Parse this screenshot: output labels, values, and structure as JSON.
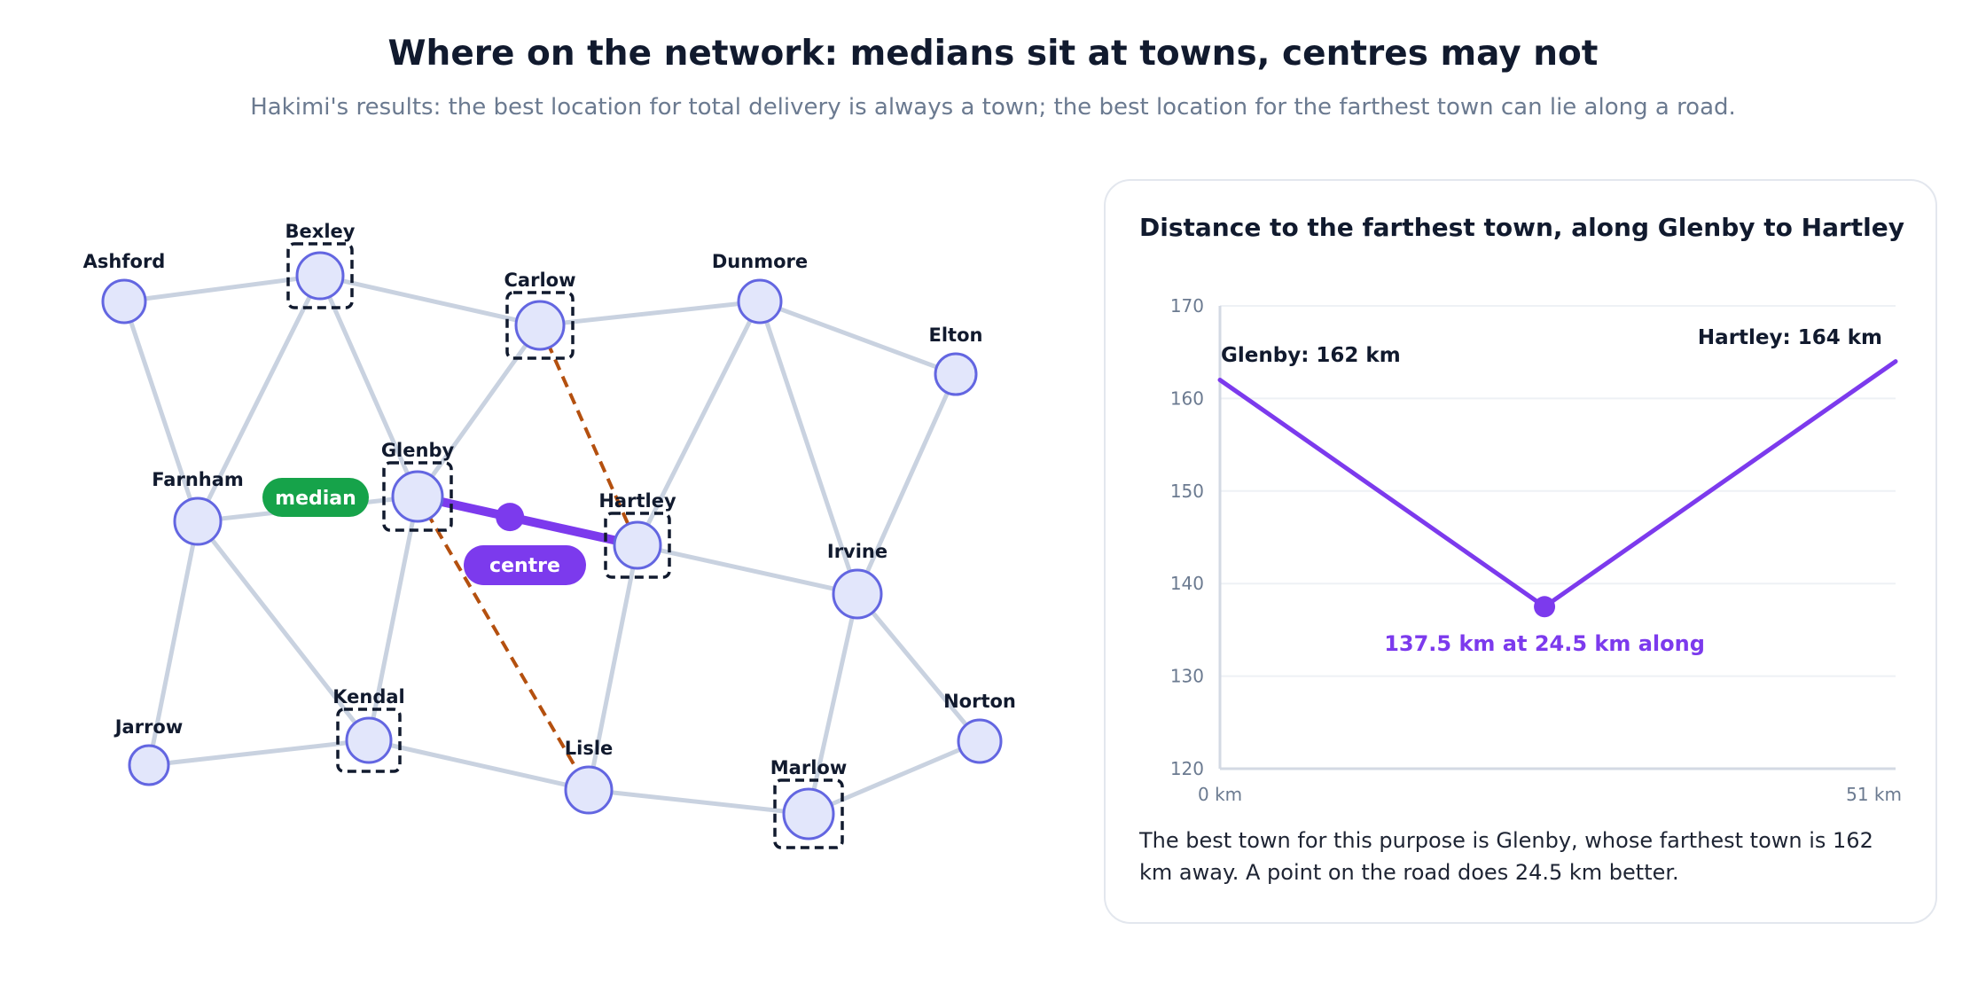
{
  "title": "Where on the network: medians sit at towns, centres may not",
  "subtitle": "Hakimi's results: the best location for total delivery is always a town; the best location for the farthest town can lie along a road.",
  "network": {
    "towns": [
      {
        "id": "ashford",
        "label": "Ashford",
        "boxed": false
      },
      {
        "id": "bexley",
        "label": "Bexley",
        "boxed": true
      },
      {
        "id": "carlow",
        "label": "Carlow",
        "boxed": true
      },
      {
        "id": "dunmore",
        "label": "Dunmore",
        "boxed": false
      },
      {
        "id": "elton",
        "label": "Elton",
        "boxed": false
      },
      {
        "id": "farnham",
        "label": "Farnham",
        "boxed": false
      },
      {
        "id": "glenby",
        "label": "Glenby",
        "boxed": true
      },
      {
        "id": "hartley",
        "label": "Hartley",
        "boxed": true
      },
      {
        "id": "irvine",
        "label": "Irvine",
        "boxed": false
      },
      {
        "id": "jarrow",
        "label": "Jarrow",
        "boxed": false
      },
      {
        "id": "kendal",
        "label": "Kendal",
        "boxed": true
      },
      {
        "id": "lisle",
        "label": "Lisle",
        "boxed": false
      },
      {
        "id": "marlow",
        "label": "Marlow",
        "boxed": true
      },
      {
        "id": "norton",
        "label": "Norton",
        "boxed": false
      }
    ],
    "roads": [
      [
        "ashford",
        "bexley"
      ],
      [
        "bexley",
        "carlow"
      ],
      [
        "carlow",
        "dunmore"
      ],
      [
        "dunmore",
        "elton"
      ],
      [
        "ashford",
        "farnham"
      ],
      [
        "bexley",
        "farnham"
      ],
      [
        "bexley",
        "glenby"
      ],
      [
        "carlow",
        "glenby"
      ],
      [
        "dunmore",
        "hartley"
      ],
      [
        "dunmore",
        "irvine"
      ],
      [
        "elton",
        "irvine"
      ],
      [
        "farnham",
        "glenby"
      ],
      [
        "glenby",
        "hartley"
      ],
      [
        "hartley",
        "irvine"
      ],
      [
        "farnham",
        "jarrow"
      ],
      [
        "farnham",
        "kendal"
      ],
      [
        "glenby",
        "kendal"
      ],
      [
        "hartley",
        "lisle"
      ],
      [
        "irvine",
        "marlow"
      ],
      [
        "irvine",
        "norton"
      ],
      [
        "jarrow",
        "kendal"
      ],
      [
        "kendal",
        "lisle"
      ],
      [
        "lisle",
        "marlow"
      ],
      [
        "marlow",
        "norton"
      ]
    ],
    "dashed_paths": [
      [
        "carlow",
        "hartley"
      ],
      [
        "glenby",
        "lisle"
      ]
    ],
    "highlight_road": [
      "glenby",
      "hartley"
    ],
    "colors": {
      "road": "#c9d2e0",
      "node_fill": "#e2e6fb",
      "node_stroke": "#6366e1",
      "box": "#111a2e",
      "dashed": "#b4500f",
      "median": "#16a34a",
      "centre": "#7c3aed"
    },
    "median_label": "median",
    "centre_label": "centre"
  },
  "panel": {
    "title": "Distance to the farthest town, along Glenby to Hartley",
    "caption": "The best town for this purpose is Glenby, whose farthest town is 162 km away. A point on the road does 24.5 km better."
  },
  "chart_data": {
    "type": "line",
    "title": "Distance to the farthest town, along Glenby to Hartley",
    "x": [
      0,
      24.5,
      51
    ],
    "series": [
      {
        "values": [
          162,
          137.5,
          164
        ]
      }
    ],
    "xlim": [
      0,
      51
    ],
    "ylim": [
      120,
      170
    ],
    "yticks": [
      120,
      130,
      140,
      150,
      160,
      170
    ],
    "x_tick_labels": [
      "0 km",
      "51 km"
    ],
    "grid": true,
    "annotations": {
      "start": "Glenby: 162 km",
      "end": "Hartley: 164 km",
      "minimum": "137.5 km at 24.5 km along"
    },
    "line_color": "#7c3aed"
  }
}
